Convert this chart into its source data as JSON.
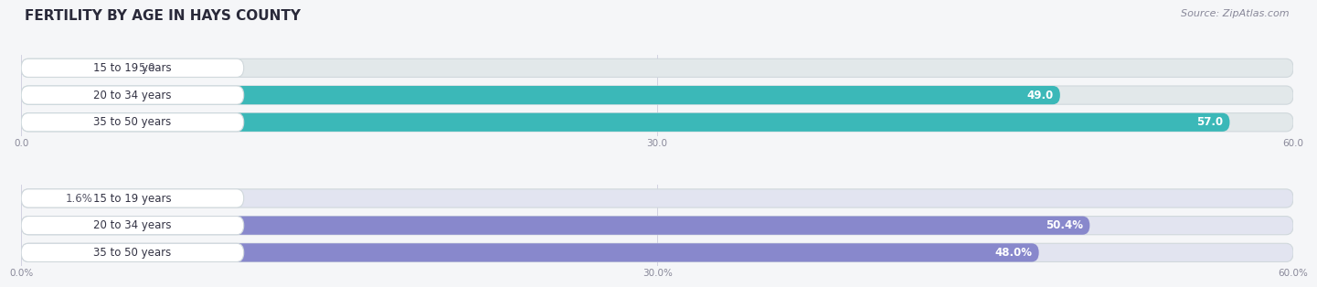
{
  "title": "FERTILITY BY AGE IN HAYS COUNTY",
  "source": "Source: ZipAtlas.com",
  "top_chart": {
    "categories": [
      "15 to 19 years",
      "20 to 34 years",
      "35 to 50 years"
    ],
    "values": [
      5.0,
      49.0,
      57.0
    ],
    "value_labels": [
      "5.0",
      "49.0",
      "57.0"
    ],
    "xlim": [
      0,
      60
    ],
    "xticks": [
      0.0,
      30.0,
      60.0
    ],
    "xticklabels": [
      "0.0",
      "30.0",
      "60.0"
    ],
    "bar_color": "#3BB8B8",
    "bar_color_light": "#90D4D4",
    "bar_bg_color": "#e2e8ea"
  },
  "bottom_chart": {
    "categories": [
      "15 to 19 years",
      "20 to 34 years",
      "35 to 50 years"
    ],
    "values": [
      1.6,
      50.4,
      48.0
    ],
    "value_labels": [
      "1.6%",
      "50.4%",
      "48.0%"
    ],
    "xlim": [
      0,
      60
    ],
    "xticks": [
      0.0,
      30.0,
      60.0
    ],
    "xticklabels": [
      "0.0%",
      "30.0%",
      "60.0%"
    ],
    "bar_color": "#8888CC",
    "bar_color_light": "#BBBBEE",
    "bar_bg_color": "#e2e4f0"
  },
  "title_color": "#2a2a3a",
  "title_fontsize": 11,
  "source_fontsize": 8,
  "value_label_fontsize": 8.5,
  "category_fontsize": 8.5,
  "axis_fontsize": 7.5,
  "fig_bg": "#f5f6f8",
  "pill_bg": "#ffffff",
  "pill_border": "#d0d8dc"
}
